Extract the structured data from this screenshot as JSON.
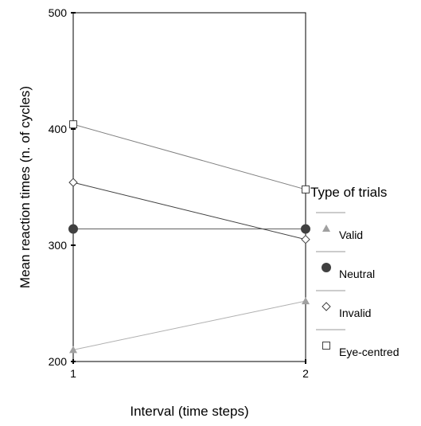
{
  "chart_data": {
    "type": "line",
    "xlabel": "Interval (time steps)",
    "ylabel": "Mean reaction times (n. of cycles)",
    "x": [
      1,
      2
    ],
    "xticks": [
      "1",
      "2"
    ],
    "ylim": [
      200,
      500
    ],
    "yticks": [
      "200",
      "300",
      "400",
      "500"
    ],
    "grid": false,
    "legend": {
      "title": "Type of trials",
      "placement": "right"
    },
    "series": [
      {
        "name": "Valid",
        "values": [
          210,
          252
        ],
        "marker": "triangle",
        "color": "#a0a0a0",
        "line_color": "#b0b0b0"
      },
      {
        "name": "Neutral",
        "values": [
          314,
          314
        ],
        "marker": "filled-circle",
        "color": "#404040",
        "line_color": "#606060"
      },
      {
        "name": "Invalid",
        "values": [
          354,
          305
        ],
        "marker": "open-diamond",
        "color": "#404040",
        "line_color": "#404040"
      },
      {
        "name": "Eye-centred",
        "values": [
          404,
          348
        ],
        "marker": "open-square",
        "color": "#404040",
        "line_color": "#808080"
      }
    ]
  }
}
